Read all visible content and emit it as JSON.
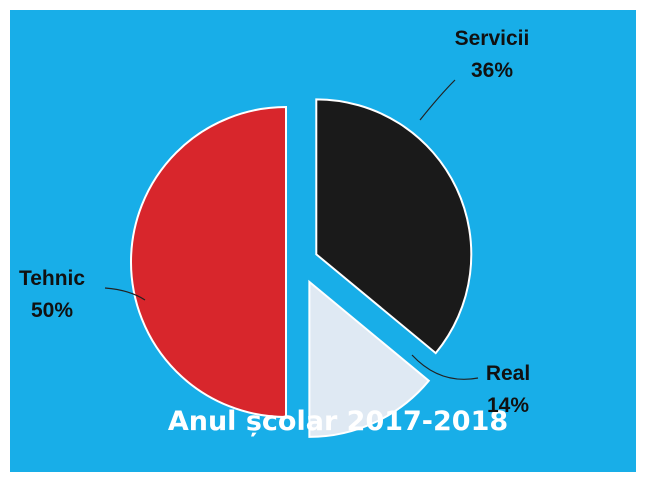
{
  "chart_data": {
    "type": "pie",
    "title": "Anul școlar 2017-2018",
    "categories": [
      "Servicii",
      "Real",
      "Tehnic"
    ],
    "values": [
      36,
      14,
      50
    ],
    "value_labels": [
      "36%",
      "14%",
      "50%"
    ],
    "colors": [
      "#1a1a1a",
      "#dfe9f3",
      "#d8262c"
    ]
  }
}
